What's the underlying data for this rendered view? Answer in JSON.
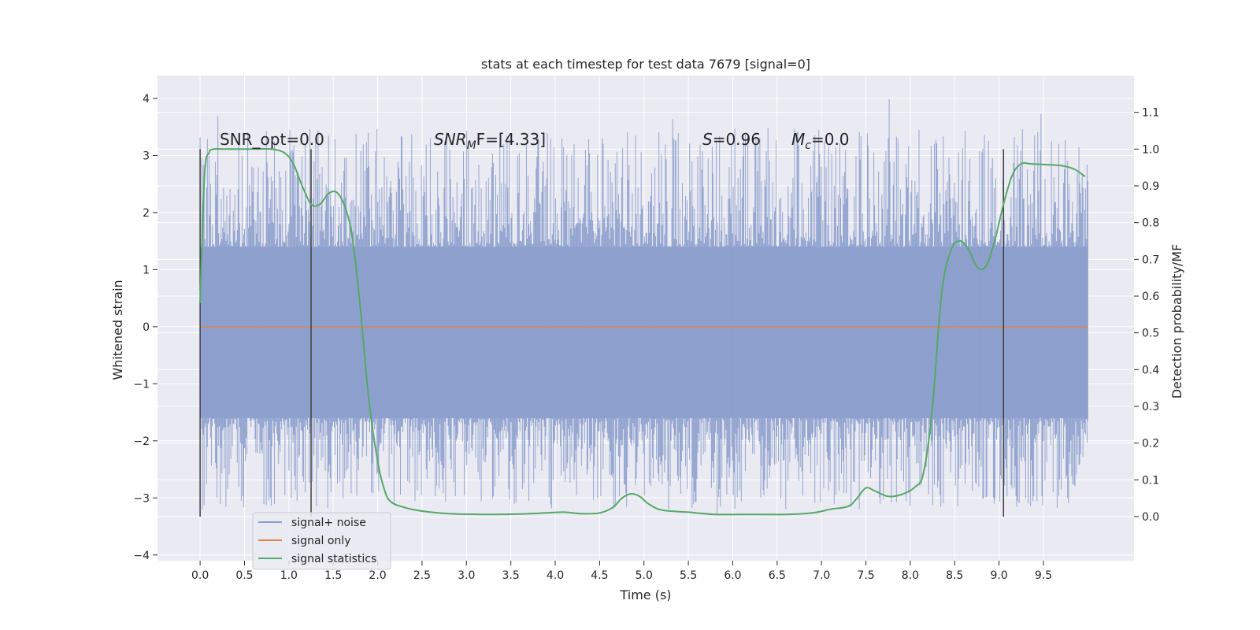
{
  "chart_data": {
    "type": "line",
    "title": "stats at each timestep for test data 7679 [signal=0]",
    "xlabel": "Time (s)",
    "ylabel": "Whitened strain",
    "y2label": "Detection probability/MF",
    "xlim": [
      -0.48,
      10.52
    ],
    "ylim": [
      -4.1,
      4.4
    ],
    "y2lim": [
      -0.12,
      1.2
    ],
    "xticks": [
      "0.0",
      "0.5",
      "1.0",
      "1.5",
      "2.0",
      "2.5",
      "3.0",
      "3.5",
      "4.0",
      "4.5",
      "5.0",
      "5.5",
      "6.0",
      "6.5",
      "7.0",
      "7.5",
      "8.0",
      "8.5",
      "9.0",
      "9.5"
    ],
    "yticks": [
      "4",
      "3",
      "2",
      "1",
      "0",
      "−1",
      "−2",
      "−3",
      "−4"
    ],
    "y2ticks": [
      "1.1",
      "1.0",
      "0.9",
      "0.8",
      "0.7",
      "0.6",
      "0.5",
      "0.4",
      "0.3",
      "0.2",
      "0.1",
      "0.0"
    ],
    "grid": true,
    "legend_position": "lower-left",
    "colors": {
      "background": "#eaeaf2",
      "noise": "#8c9fcc",
      "signal": "#dd8452",
      "stats": "#55a868",
      "marker": "#404040",
      "grid": "#ffffff"
    },
    "series": [
      {
        "name": "signal+ noise",
        "description_only": false,
        "x_range": [
          0.0,
          10.0
        ],
        "typical_range": [
          -1.6,
          1.4
        ],
        "max": 4.0,
        "min": -3.6
      },
      {
        "name": "signal only",
        "x_range": [
          0.0,
          10.0
        ],
        "values_constant": 0.0
      },
      {
        "name": "signal statistics",
        "axis": "right",
        "x": [
          0.0,
          0.05,
          0.1,
          0.15,
          0.25,
          0.4,
          0.6,
          0.8,
          0.95,
          1.05,
          1.15,
          1.25,
          1.35,
          1.45,
          1.55,
          1.65,
          1.72,
          1.8,
          1.9,
          2.0,
          2.08,
          2.15,
          2.3,
          2.5,
          2.8,
          3.2,
          3.6,
          3.9,
          4.1,
          4.3,
          4.5,
          4.65,
          4.75,
          4.85,
          4.95,
          5.05,
          5.2,
          5.5,
          5.8,
          6.2,
          6.6,
          6.9,
          7.1,
          7.3,
          7.4,
          7.5,
          7.6,
          7.75,
          7.9,
          8.05,
          8.15,
          8.25,
          8.35,
          8.45,
          8.55,
          8.65,
          8.75,
          8.85,
          8.95,
          9.05,
          9.15,
          9.25,
          9.35,
          9.5,
          9.7,
          9.85,
          9.97
        ],
        "values": [
          0.58,
          0.93,
          0.99,
          1.0,
          1.0,
          1.0,
          1.0,
          1.0,
          0.99,
          0.96,
          0.9,
          0.85,
          0.85,
          0.88,
          0.88,
          0.83,
          0.75,
          0.58,
          0.32,
          0.15,
          0.07,
          0.04,
          0.025,
          0.015,
          0.008,
          0.006,
          0.007,
          0.01,
          0.012,
          0.008,
          0.01,
          0.025,
          0.05,
          0.062,
          0.055,
          0.035,
          0.018,
          0.012,
          0.006,
          0.006,
          0.006,
          0.01,
          0.02,
          0.028,
          0.05,
          0.078,
          0.07,
          0.055,
          0.06,
          0.08,
          0.12,
          0.3,
          0.6,
          0.72,
          0.75,
          0.73,
          0.68,
          0.68,
          0.75,
          0.85,
          0.93,
          0.96,
          0.96,
          0.958,
          0.955,
          0.945,
          0.925
        ]
      }
    ],
    "vertical_markers": [
      {
        "x": 0.0,
        "y_top": 1.0,
        "y_bottom": 0.0
      },
      {
        "x": 1.25,
        "y_top": 1.0,
        "y_bottom": 0.0
      },
      {
        "x": 9.05,
        "y_top": 1.0,
        "y_bottom": 0.0
      }
    ],
    "annotations": {
      "snr_opt": "SNR_opt=0.0",
      "snr_mf_name": "SNR",
      "snr_mf_sub": "M",
      "snr_mf_tail": "F=[4.33]",
      "s_name": "S",
      "s_value": "=0.96",
      "mc_name": "M",
      "mc_sub": "c",
      "mc_value": "=0.0"
    }
  }
}
